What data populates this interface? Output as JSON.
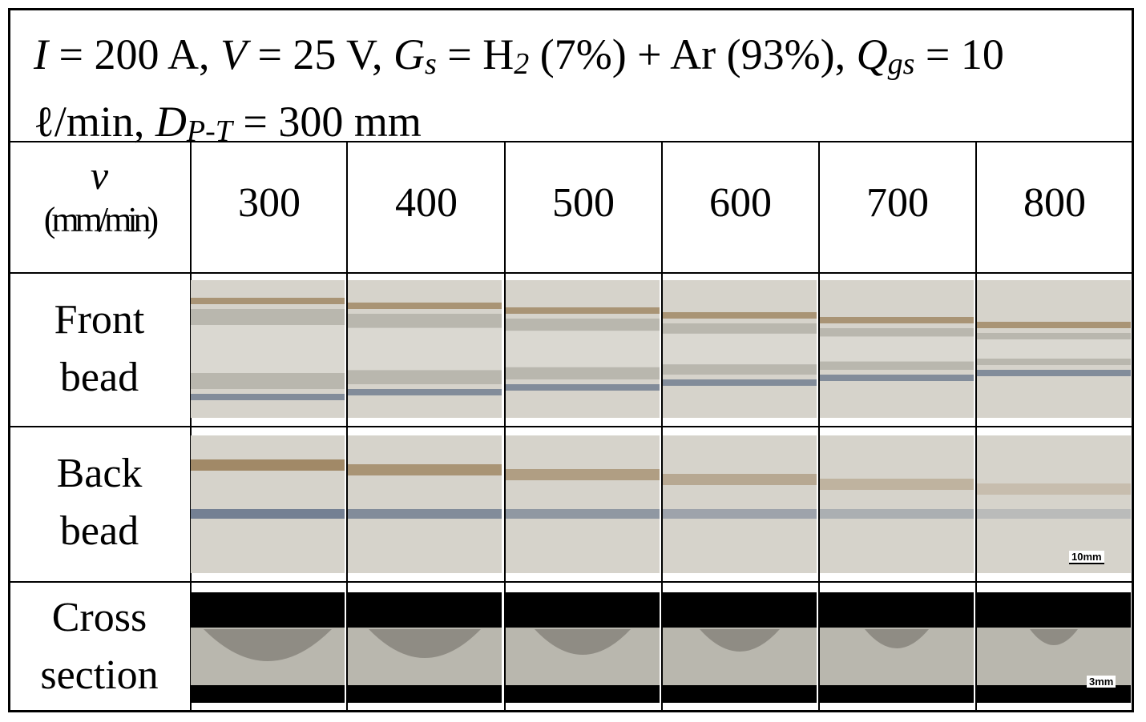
{
  "header": {
    "I_sym": "I",
    "I_text": " = 200 A, ",
    "V_sym": "V",
    "V_text": " = 25 V, ",
    "G_sym": "G",
    "G_sub": "s",
    "G_text1": " = H",
    "G_h2sub": "2",
    "G_text2": " (7%) + Ar (93%), ",
    "Q_sym": "Q",
    "Q_sub": "gs",
    "Q_text": " = 10",
    "line2_unit": "ℓ/min, ",
    "D_sym": "D",
    "D_sub": "P-T",
    "D_text": " = 300 mm"
  },
  "table": {
    "speed_symbol": "v",
    "speed_unit": "(mm/min)",
    "speeds": [
      "300",
      "400",
      "500",
      "600",
      "700",
      "800"
    ],
    "rows": [
      {
        "label_line1": "Front",
        "label_line2": "bead"
      },
      {
        "label_line1": "Back",
        "label_line2": "bead"
      },
      {
        "label_line1": "Cross",
        "label_line2": "section"
      }
    ],
    "scale_back": "10mm",
    "scale_cross": "3mm"
  },
  "colors": {
    "metal": "#b9b7ae",
    "metal_light": "#d6d3cb",
    "heat_tint_brown": "#8a6a3c",
    "heat_tint_blue": "#4a5d7a",
    "weld_bright": "#e8e6df",
    "section_black": "#000000"
  }
}
